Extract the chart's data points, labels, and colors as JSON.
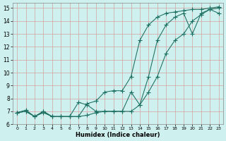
{
  "xlabel": "Humidex (Indice chaleur)",
  "bg_color": "#cef0ee",
  "grid_color": "#d4a0a0",
  "line_color": "#1a6e60",
  "xlim": [
    -0.5,
    23.5
  ],
  "ylim": [
    6.0,
    15.4
  ],
  "xticks": [
    0,
    1,
    2,
    3,
    4,
    5,
    6,
    7,
    8,
    9,
    10,
    11,
    12,
    13,
    14,
    15,
    16,
    17,
    18,
    19,
    20,
    21,
    22,
    23
  ],
  "yticks": [
    6,
    7,
    8,
    9,
    10,
    11,
    12,
    13,
    14,
    15
  ],
  "series1_x": [
    0,
    1,
    2,
    3,
    4,
    5,
    6,
    7,
    8,
    9,
    10,
    11,
    12,
    13,
    14,
    15,
    16,
    17,
    18,
    19,
    20,
    21,
    22,
    23
  ],
  "series1_y": [
    6.9,
    7.0,
    6.6,
    6.9,
    6.6,
    6.6,
    6.6,
    6.6,
    6.7,
    6.9,
    7.0,
    7.0,
    7.0,
    7.0,
    7.5,
    8.5,
    9.7,
    11.5,
    12.5,
    13.0,
    14.0,
    14.5,
    14.9,
    15.0
  ],
  "series2_x": [
    0,
    1,
    2,
    3,
    4,
    5,
    6,
    7,
    8,
    9,
    10,
    11,
    12,
    13,
    14,
    15,
    16,
    17,
    18,
    19,
    20,
    21,
    22,
    23
  ],
  "series2_y": [
    6.9,
    7.0,
    6.6,
    7.0,
    6.6,
    6.6,
    6.6,
    6.6,
    7.6,
    7.8,
    8.5,
    8.6,
    8.6,
    9.7,
    12.5,
    13.7,
    14.3,
    14.6,
    14.7,
    14.8,
    14.9,
    14.9,
    15.0,
    15.1
  ],
  "series3_x": [
    0,
    1,
    2,
    3,
    4,
    5,
    6,
    7,
    8,
    9,
    10,
    11,
    12,
    13,
    14,
    15,
    16,
    17,
    18,
    19,
    20,
    21,
    22,
    23
  ],
  "series3_y": [
    6.9,
    7.1,
    6.6,
    7.0,
    6.6,
    6.6,
    6.6,
    7.7,
    7.5,
    7.0,
    7.0,
    7.0,
    7.0,
    8.5,
    7.5,
    9.7,
    12.5,
    13.7,
    14.3,
    14.6,
    13.0,
    14.6,
    14.9,
    14.6
  ]
}
